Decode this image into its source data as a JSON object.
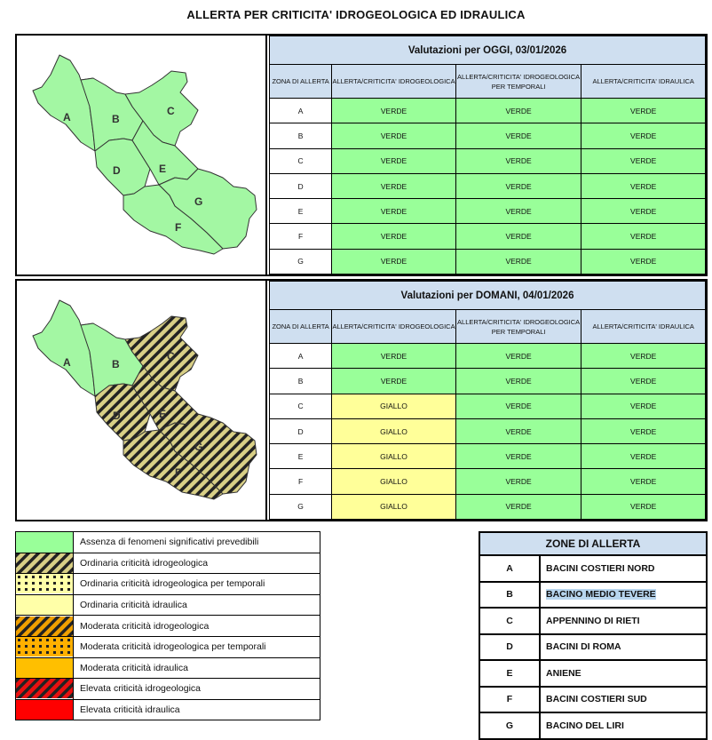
{
  "title": "ALLERTA PER CRITICITA' IDROGEOLOGICA ED IDRAULICA",
  "columns": {
    "zona": "ZONA DI ALLERTA",
    "idrogeo": "ALLERTA/CRITICITA' IDROGEOLOGICA",
    "temporali": "ALLERTA/CRITICITA' IDROGEOLOGICA PER TEMPORALI",
    "idraulica": "ALLERTA/CRITICITA' IDRAULICA"
  },
  "colors": {
    "verde": "#99ff99",
    "giallo": "#ffff99",
    "header": "#cfdff0"
  },
  "today": {
    "heading": "Valutazioni per OGGI, 03/01/2026",
    "rows": [
      {
        "zone": "A",
        "idrogeo": "VERDE",
        "temporali": "VERDE",
        "idraulica": "VERDE"
      },
      {
        "zone": "B",
        "idrogeo": "VERDE",
        "temporali": "VERDE",
        "idraulica": "VERDE"
      },
      {
        "zone": "C",
        "idrogeo": "VERDE",
        "temporali": "VERDE",
        "idraulica": "VERDE"
      },
      {
        "zone": "D",
        "idrogeo": "VERDE",
        "temporali": "VERDE",
        "idraulica": "VERDE"
      },
      {
        "zone": "E",
        "idrogeo": "VERDE",
        "temporali": "VERDE",
        "idraulica": "VERDE"
      },
      {
        "zone": "F",
        "idrogeo": "VERDE",
        "temporali": "VERDE",
        "idraulica": "VERDE"
      },
      {
        "zone": "G",
        "idrogeo": "VERDE",
        "temporali": "VERDE",
        "idraulica": "VERDE"
      }
    ]
  },
  "tomorrow": {
    "heading": "Valutazioni per DOMANI, 04/01/2026",
    "rows": [
      {
        "zone": "A",
        "idrogeo": "VERDE",
        "temporali": "VERDE",
        "idraulica": "VERDE"
      },
      {
        "zone": "B",
        "idrogeo": "VERDE",
        "temporali": "VERDE",
        "idraulica": "VERDE"
      },
      {
        "zone": "C",
        "idrogeo": "GIALLO",
        "temporali": "VERDE",
        "idraulica": "VERDE"
      },
      {
        "zone": "D",
        "idrogeo": "GIALLO",
        "temporali": "VERDE",
        "idraulica": "VERDE"
      },
      {
        "zone": "E",
        "idrogeo": "GIALLO",
        "temporali": "VERDE",
        "idraulica": "VERDE"
      },
      {
        "zone": "F",
        "idrogeo": "GIALLO",
        "temporali": "VERDE",
        "idraulica": "VERDE"
      },
      {
        "zone": "G",
        "idrogeo": "GIALLO",
        "temporali": "VERDE",
        "idraulica": "VERDE"
      }
    ]
  },
  "map_labels": [
    "A",
    "B",
    "C",
    "D",
    "E",
    "F",
    "G"
  ],
  "legend": [
    {
      "label": "Assenza di fenomeni significativi prevedibili",
      "swatch": "green"
    },
    {
      "label": "Ordinaria criticità idrogeologica",
      "swatch": "yellow-hatch"
    },
    {
      "label": "Ordinaria criticità idrogeologica per temporali",
      "swatch": "yellow-dots"
    },
    {
      "label": "Ordinaria criticità idraulica",
      "swatch": "yellow"
    },
    {
      "label": "Moderata criticità idrogeologica",
      "swatch": "orange-hatch"
    },
    {
      "label": "Moderata criticità idrogeologica per temporali",
      "swatch": "orange-dots"
    },
    {
      "label": "Moderata criticità idraulica",
      "swatch": "orange"
    },
    {
      "label": "Elevata criticità idrogeologica",
      "swatch": "red-hatch"
    },
    {
      "label": "Elevata criticità idraulica",
      "swatch": "red"
    }
  ],
  "zones": {
    "heading": "ZONE DI ALLERTA",
    "items": [
      {
        "letter": "A",
        "name": "BACINI COSTIERI NORD"
      },
      {
        "letter": "B",
        "name": "BACINO MEDIO TEVERE"
      },
      {
        "letter": "C",
        "name": "APPENNINO DI RIETI"
      },
      {
        "letter": "D",
        "name": "BACINI DI ROMA"
      },
      {
        "letter": "E",
        "name": "ANIENE"
      },
      {
        "letter": "F",
        "name": "BACINI COSTIERI SUD"
      },
      {
        "letter": "G",
        "name": "BACINO DEL LIRI"
      }
    ]
  }
}
